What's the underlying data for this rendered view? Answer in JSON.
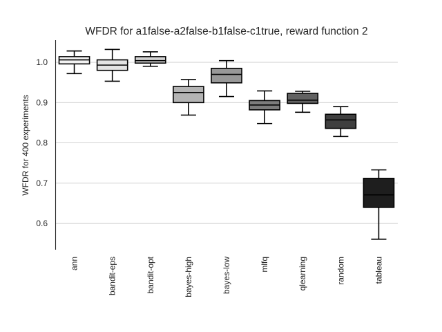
{
  "chart_data": {
    "type": "box",
    "title": "WFDR for a1false-a2false-b1false-c1true, reward function 2",
    "xlabel": "",
    "ylabel": "WFDR for 400 experiments",
    "ylim": [
      0.535,
      1.055
    ],
    "yticks": [
      0.6,
      0.7,
      0.8,
      0.9,
      1.0
    ],
    "ytick_labels": [
      "0.6",
      "0.7",
      "0.8",
      "0.9",
      "1.0"
    ],
    "grid": "horizontal",
    "categories": [
      "ann",
      "bandit-eps",
      "bandit-opt",
      "bayes-high",
      "bayes-low",
      "mlfq",
      "qlearning",
      "random",
      "tableau"
    ],
    "boxes": [
      {
        "category": "ann",
        "whislo": 0.972,
        "q1": 0.996,
        "med": 1.006,
        "q3": 1.014,
        "whishi": 1.028,
        "color": "#f2f2f2"
      },
      {
        "category": "bandit-eps",
        "whislo": 0.953,
        "q1": 0.98,
        "med": 0.993,
        "q3": 1.006,
        "whishi": 1.032,
        "color": "#e3e3e3"
      },
      {
        "category": "bandit-opt",
        "whislo": 0.99,
        "q1": 0.998,
        "med": 1.004,
        "q3": 1.014,
        "whishi": 1.026,
        "color": "#d2d2d2"
      },
      {
        "category": "bayes-high",
        "whislo": 0.869,
        "q1": 0.9,
        "med": 0.925,
        "q3": 0.94,
        "whishi": 0.957,
        "color": "#b4b4b4"
      },
      {
        "category": "bayes-low",
        "whislo": 0.915,
        "q1": 0.949,
        "med": 0.97,
        "q3": 0.985,
        "whishi": 1.004,
        "color": "#989898"
      },
      {
        "category": "mlfq",
        "whislo": 0.848,
        "q1": 0.882,
        "med": 0.894,
        "q3": 0.905,
        "whishi": 0.929,
        "color": "#7d7d7d"
      },
      {
        "category": "qlearning",
        "whislo": 0.876,
        "q1": 0.898,
        "med": 0.906,
        "q3": 0.923,
        "whishi": 0.928,
        "color": "#626262"
      },
      {
        "category": "random",
        "whislo": 0.816,
        "q1": 0.836,
        "med": 0.857,
        "q3": 0.871,
        "whishi": 0.89,
        "color": "#3f3f3f"
      },
      {
        "category": "tableau",
        "whislo": 0.561,
        "q1": 0.64,
        "med": 0.671,
        "q3": 0.712,
        "whishi": 0.733,
        "color": "#1e1e1e"
      }
    ]
  }
}
